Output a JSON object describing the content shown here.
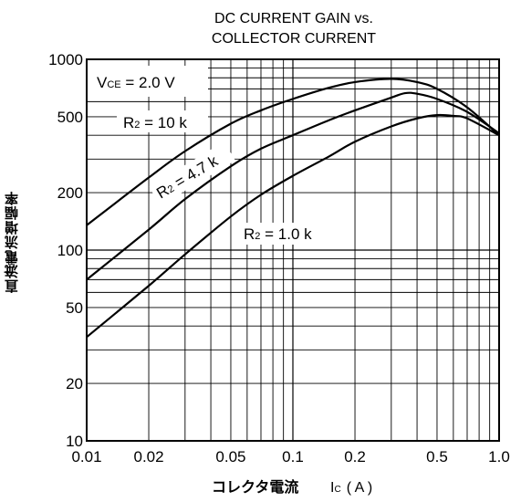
{
  "chart_data": {
    "type": "line",
    "title_lines": [
      "DC CURRENT GAIN vs.",
      "COLLECTOR CURRENT"
    ],
    "xlabel_main": "コレクタ電流",
    "xlabel_symbol": "I",
    "xlabel_sub": "C",
    "xlabel_unit": "( A )",
    "ylabel_main": "直流電流増幅率",
    "ylabel_symbol": "h",
    "ylabel_sub": "FE",
    "x_scale": "log",
    "y_scale": "log",
    "xlim": [
      0.01,
      1.0
    ],
    "ylim": [
      10,
      1000
    ],
    "x_ticks": [
      {
        "v": 0.01,
        "label": "0.01"
      },
      {
        "v": 0.02,
        "label": "0.02"
      },
      {
        "v": 0.05,
        "label": "0.05"
      },
      {
        "v": 0.1,
        "label": "0.1"
      },
      {
        "v": 0.2,
        "label": "0.2"
      },
      {
        "v": 0.5,
        "label": "0.5"
      },
      {
        "v": 1.0,
        "label": "1.0"
      }
    ],
    "y_ticks": [
      {
        "v": 10,
        "label": "10"
      },
      {
        "v": 20,
        "label": "20"
      },
      {
        "v": 50,
        "label": "50"
      },
      {
        "v": 100,
        "label": "100"
      },
      {
        "v": 200,
        "label": "200"
      },
      {
        "v": 500,
        "label": "500"
      },
      {
        "v": 1000,
        "label": "1000"
      }
    ],
    "grid": true,
    "condition": {
      "symbol": "V",
      "sub": "CE",
      "text": " = 2.0 V"
    },
    "series": [
      {
        "name": "R2 = 10 k",
        "x": [
          0.01,
          0.02,
          0.03,
          0.05,
          0.07,
          0.1,
          0.15,
          0.2,
          0.3,
          0.4,
          0.5,
          0.7,
          1.0
        ],
        "y": [
          135,
          240,
          330,
          460,
          540,
          620,
          710,
          760,
          790,
          760,
          700,
          560,
          400
        ]
      },
      {
        "name": "R2 = 4.7 k",
        "x": [
          0.01,
          0.02,
          0.03,
          0.05,
          0.07,
          0.1,
          0.15,
          0.2,
          0.3,
          0.35,
          0.4,
          0.5,
          0.7,
          1.0
        ],
        "y": [
          70,
          128,
          185,
          275,
          340,
          400,
          480,
          540,
          630,
          665,
          660,
          620,
          530,
          410
        ]
      },
      {
        "name": "R2 = 1.0 k",
        "x": [
          0.01,
          0.02,
          0.03,
          0.05,
          0.07,
          0.1,
          0.15,
          0.2,
          0.3,
          0.4,
          0.5,
          0.6,
          0.7,
          1.0
        ],
        "y": [
          35,
          65,
          95,
          150,
          195,
          245,
          310,
          370,
          445,
          490,
          510,
          505,
          490,
          400
        ]
      }
    ],
    "annotations": [
      {
        "main": "R",
        "sub": "2",
        "rest": " = 10 k"
      },
      {
        "main": "R",
        "sub": "2",
        "rest": " = 4.7 k"
      },
      {
        "main": "R",
        "sub": "2",
        "rest": " = 1.0 k"
      }
    ]
  }
}
